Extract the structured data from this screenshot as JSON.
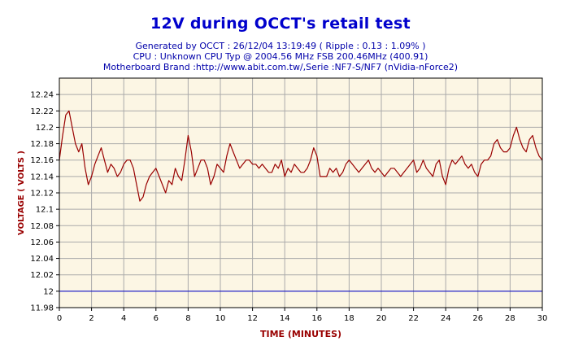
{
  "chart_data": {
    "type": "line",
    "title": "12V during OCCT's retail test",
    "subtitles": [
      "Generated by OCCT : 26/12/04 13:19:49 ( Ripple : 0.13 : 1.09% )",
      "CPU : Unknown CPU Typ @ 2004.56 MHz FSB 200.46MHz (400.91)",
      "Motherboard Brand :http://www.abit.com.tw/,Serie :NF7-S/NF7 (nVidia-nForce2)"
    ],
    "xlabel": "TIME (MINUTES)",
    "ylabel": "VOLTAGE ( VOLTS )",
    "xlim": [
      0,
      30
    ],
    "ylim": [
      11.98,
      12.26
    ],
    "xticks": [
      0,
      2,
      4,
      6,
      8,
      10,
      12,
      14,
      16,
      18,
      20,
      22,
      24,
      26,
      28,
      30
    ],
    "yticks": [
      11.98,
      12,
      12.02,
      12.04,
      12.06,
      12.08,
      12.1,
      12.12,
      12.14,
      12.16,
      12.18,
      12.2,
      12.22,
      12.24
    ],
    "grid": true,
    "series": [
      {
        "color": "#990000",
        "x": [
          0,
          0.2,
          0.4,
          0.6,
          0.8,
          1.0,
          1.2,
          1.4,
          1.6,
          1.8,
          2.0,
          2.2,
          2.4,
          2.6,
          2.8,
          3.0,
          3.2,
          3.4,
          3.6,
          3.8,
          4.0,
          4.2,
          4.4,
          4.6,
          4.8,
          5.0,
          5.2,
          5.4,
          5.6,
          5.8,
          6.0,
          6.2,
          6.4,
          6.6,
          6.8,
          7.0,
          7.2,
          7.4,
          7.6,
          7.8,
          8.0,
          8.2,
          8.4,
          8.6,
          8.8,
          9.0,
          9.2,
          9.4,
          9.6,
          9.8,
          10.0,
          10.2,
          10.4,
          10.6,
          10.8,
          11.0,
          11.2,
          11.4,
          11.6,
          11.8,
          12.0,
          12.2,
          12.4,
          12.6,
          12.8,
          13.0,
          13.2,
          13.4,
          13.6,
          13.8,
          14.0,
          14.2,
          14.4,
          14.6,
          14.8,
          15.0,
          15.2,
          15.4,
          15.6,
          15.8,
          16.0,
          16.2,
          16.4,
          16.6,
          16.8,
          17.0,
          17.2,
          17.4,
          17.6,
          17.8,
          18.0,
          18.2,
          18.4,
          18.6,
          18.8,
          19.0,
          19.2,
          19.4,
          19.6,
          19.8,
          20.0,
          20.2,
          20.4,
          20.6,
          20.8,
          21.0,
          21.2,
          21.4,
          21.6,
          21.8,
          22.0,
          22.2,
          22.4,
          22.6,
          22.8,
          23.0,
          23.2,
          23.4,
          23.6,
          23.8,
          24.0,
          24.2,
          24.4,
          24.6,
          24.8,
          25.0,
          25.2,
          25.4,
          25.6,
          25.8,
          26.0,
          26.2,
          26.4,
          26.6,
          26.8,
          27.0,
          27.2,
          27.4,
          27.6,
          27.8,
          28.0,
          28.2,
          28.4,
          28.6,
          28.8,
          29.0,
          29.2,
          29.4,
          29.6,
          29.8,
          30.0
        ],
        "y": [
          12.16,
          12.19,
          12.215,
          12.22,
          12.2,
          12.18,
          12.17,
          12.18,
          12.15,
          12.13,
          12.14,
          12.155,
          12.165,
          12.175,
          12.16,
          12.145,
          12.155,
          12.15,
          12.14,
          12.145,
          12.155,
          12.16,
          12.16,
          12.15,
          12.13,
          12.11,
          12.115,
          12.13,
          12.14,
          12.145,
          12.15,
          12.14,
          12.13,
          12.12,
          12.135,
          12.13,
          12.15,
          12.14,
          12.135,
          12.16,
          12.19,
          12.17,
          12.14,
          12.15,
          12.16,
          12.16,
          12.15,
          12.13,
          12.14,
          12.155,
          12.15,
          12.145,
          12.165,
          12.18,
          12.17,
          12.16,
          12.15,
          12.155,
          12.16,
          12.16,
          12.155,
          12.155,
          12.15,
          12.155,
          12.15,
          12.145,
          12.145,
          12.155,
          12.15,
          12.16,
          12.14,
          12.15,
          12.145,
          12.155,
          12.15,
          12.145,
          12.145,
          12.15,
          12.16,
          12.175,
          12.165,
          12.14,
          12.14,
          12.14,
          12.15,
          12.145,
          12.15,
          12.14,
          12.145,
          12.155,
          12.16,
          12.155,
          12.15,
          12.145,
          12.15,
          12.155,
          12.16,
          12.15,
          12.145,
          12.15,
          12.145,
          12.14,
          12.145,
          12.15,
          12.15,
          12.145,
          12.14,
          12.145,
          12.15,
          12.155,
          12.16,
          12.145,
          12.15,
          12.16,
          12.15,
          12.145,
          12.14,
          12.155,
          12.16,
          12.14,
          12.13,
          12.15,
          12.16,
          12.155,
          12.16,
          12.165,
          12.155,
          12.15,
          12.155,
          12.145,
          12.14,
          12.155,
          12.16,
          12.16,
          12.165,
          12.18,
          12.185,
          12.175,
          12.17,
          12.17,
          12.175,
          12.19,
          12.2,
          12.185,
          12.175,
          12.17,
          12.185,
          12.19,
          12.175,
          12.165,
          12.16
        ]
      },
      {
        "color": "#0000cc",
        "x": [
          0,
          30
        ],
        "y": [
          12,
          12
        ]
      }
    ]
  }
}
